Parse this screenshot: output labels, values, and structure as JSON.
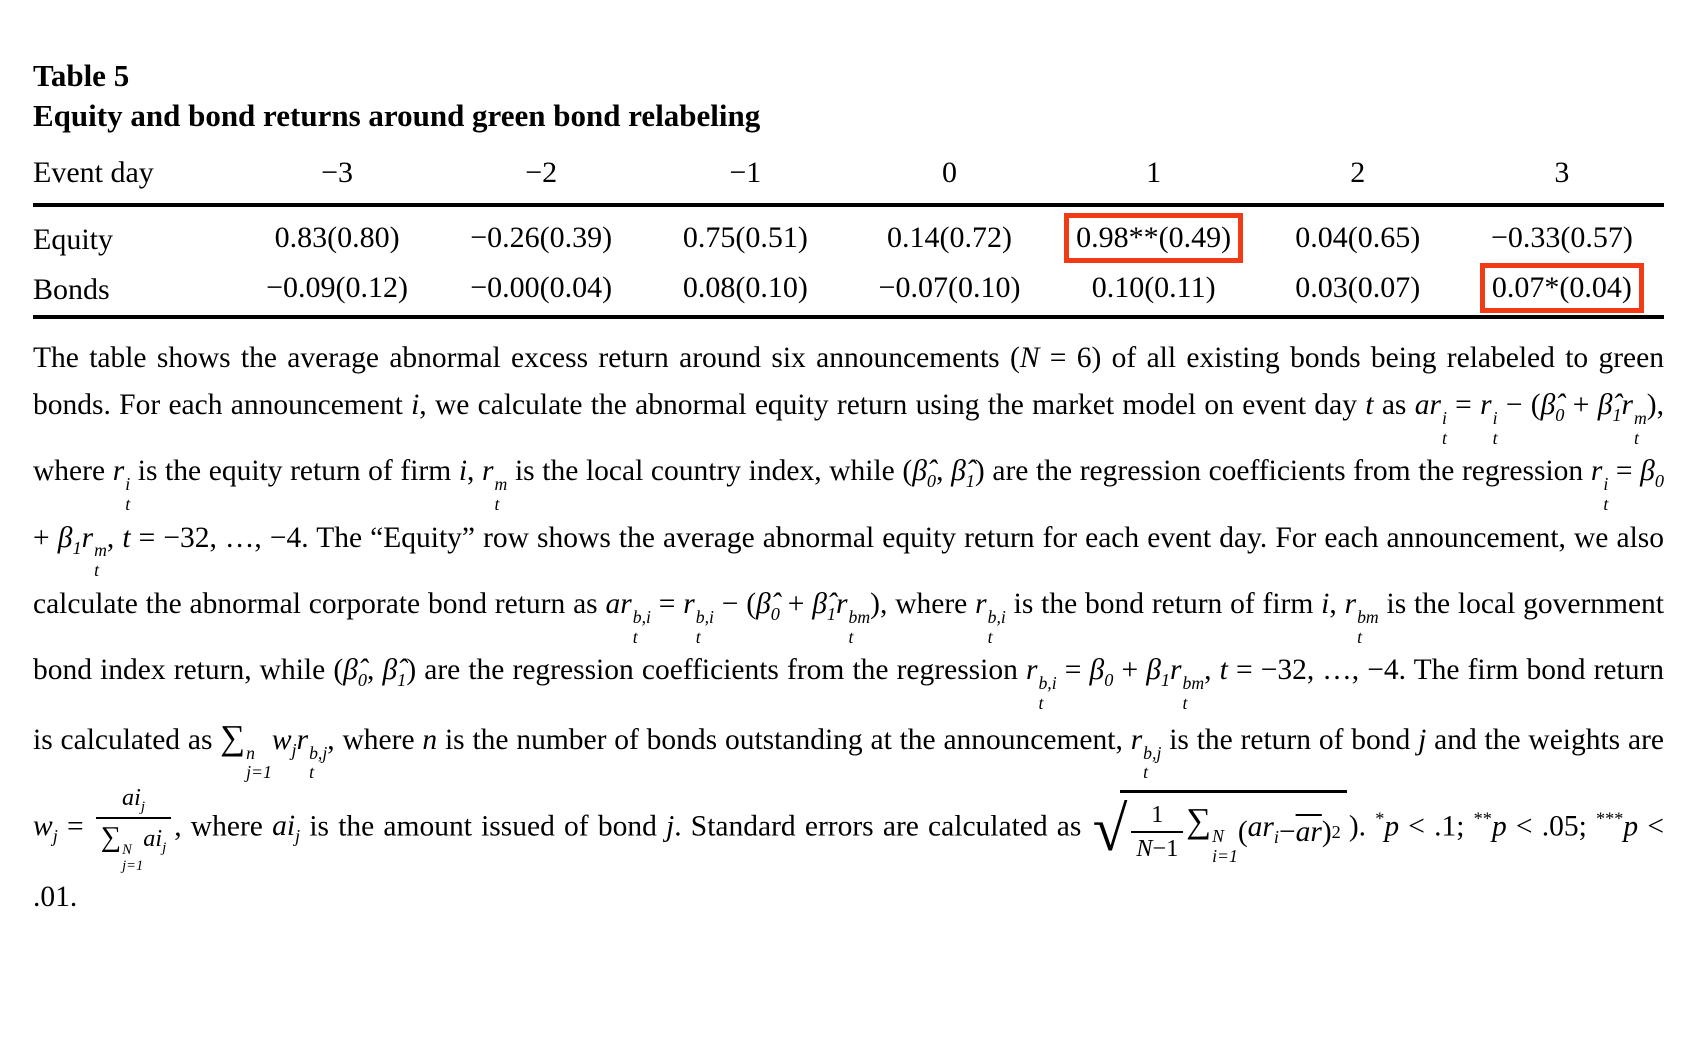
{
  "title": "Table 5",
  "subtitle": "Equity and bond returns around green bond relabeling",
  "highlight_color": "#f23a16",
  "table": {
    "columns": [
      "Event day",
      "−3",
      "−2",
      "−1",
      "0",
      "1",
      "2",
      "3"
    ],
    "rows": [
      {
        "label": "Equity",
        "values": [
          "0.83",
          "−0.26",
          "0.75",
          "0.14",
          "0.98**",
          "0.04",
          "−0.33"
        ],
        "se": [
          "(0.80)",
          "(0.39)",
          "(0.51)",
          "(0.72)",
          "(0.49)",
          "(0.65)",
          "(0.57)"
        ],
        "highlight": 4
      },
      {
        "label": "Bonds",
        "values": [
          "−0.09",
          "−0.00",
          "0.08",
          "−0.07",
          "0.10",
          "0.03",
          "0.07*"
        ],
        "se": [
          "(0.12)",
          "(0.04)",
          "(0.10)",
          "(0.10)",
          "(0.11)",
          "(0.07)",
          "(0.04)"
        ],
        "highlight": 6
      }
    ]
  },
  "note_runs": [
    {
      "t": "The table shows the average abnormal excess return around six announcements ("
    },
    {
      "i": "N"
    },
    {
      "t": " = 6) of all existing bonds being relabeled to green bonds. For each announcement "
    },
    {
      "i": "i"
    },
    {
      "t": ", we calculate the abnormal equity return using the market model on event day "
    },
    {
      "i": "t"
    },
    {
      "t": " as "
    },
    {
      "m": {
        "b": "ar",
        "sup": "i",
        "sub": "t"
      }
    },
    {
      "t": " = "
    },
    {
      "m": {
        "b": "r",
        "sup": "i",
        "sub": "t"
      }
    },
    {
      "t": " − ("
    },
    {
      "m": {
        "b": "β̂",
        "sub": "0"
      }
    },
    {
      "t": " + "
    },
    {
      "m": {
        "b": "β̂",
        "sub": "1"
      }
    },
    {
      "m": {
        "b": "r",
        "sup": "m",
        "sub": "t"
      }
    },
    {
      "t": "), where "
    },
    {
      "m": {
        "b": "r",
        "sup": "i",
        "sub": "t"
      }
    },
    {
      "t": " is the equity return of firm "
    },
    {
      "i": "i"
    },
    {
      "t": ", "
    },
    {
      "m": {
        "b": "r",
        "sup": "m",
        "sub": "t"
      }
    },
    {
      "t": " is the local country index, while ("
    },
    {
      "m": {
        "b": "β̂",
        "sub": "0"
      }
    },
    {
      "t": ", "
    },
    {
      "m": {
        "b": "β̂",
        "sub": "1"
      }
    },
    {
      "t": ") are the regression coefficients from the regression "
    },
    {
      "m": {
        "b": "r",
        "sup": "i",
        "sub": "t"
      }
    },
    {
      "t": " = "
    },
    {
      "m": {
        "b": "β",
        "sub": "0"
      }
    },
    {
      "t": " + "
    },
    {
      "m": {
        "b": "β",
        "sub": "1"
      }
    },
    {
      "m": {
        "b": "r",
        "sup": "m",
        "sub": "t"
      }
    },
    {
      "t": ", "
    },
    {
      "i": "t"
    },
    {
      "t": " = −32, …, −4. The “Equity” row shows the average abnormal equity return for each event day. For each announcement, we also calculate the abnormal corporate bond return as "
    },
    {
      "m": {
        "b": "ar",
        "sup": "b,i",
        "sub": "t"
      }
    },
    {
      "t": " = "
    },
    {
      "m": {
        "b": "r",
        "sup": "b,i",
        "sub": "t"
      }
    },
    {
      "t": " − ("
    },
    {
      "m": {
        "b": "β̂",
        "sub": "0"
      }
    },
    {
      "t": " + "
    },
    {
      "m": {
        "b": "β̂",
        "sub": "1"
      }
    },
    {
      "m": {
        "b": "r",
        "sup": "bm",
        "sub": "t"
      }
    },
    {
      "t": "), where "
    },
    {
      "m": {
        "b": "r",
        "sup": "b,i",
        "sub": "t"
      }
    },
    {
      "t": " is the bond return of firm "
    },
    {
      "i": "i"
    },
    {
      "t": ", "
    },
    {
      "m": {
        "b": "r",
        "sup": "bm",
        "sub": "t"
      }
    },
    {
      "t": " is the local government bond index return, while ("
    },
    {
      "m": {
        "b": "β̂",
        "sub": "0"
      }
    },
    {
      "t": ", "
    },
    {
      "m": {
        "b": "β̂",
        "sub": "1"
      }
    },
    {
      "t": ") are the regression coefficients from the regression "
    },
    {
      "m": {
        "b": "r",
        "sup": "b,i",
        "sub": "t"
      }
    },
    {
      "t": " = "
    },
    {
      "m": {
        "b": "β",
        "sub": "0"
      }
    },
    {
      "t": " + "
    },
    {
      "m": {
        "b": "β",
        "sub": "1"
      }
    },
    {
      "m": {
        "b": "r",
        "sup": "bm",
        "sub": "t"
      }
    },
    {
      "t": ", "
    },
    {
      "i": "t"
    },
    {
      "t": " = −32, …, −4. The firm bond return is calculated as "
    },
    {
      "sum": {
        "sup": "n",
        "sub": "j=1"
      }
    },
    {
      "m": {
        "b": "w",
        "sub": "j"
      }
    },
    {
      "m": {
        "b": "r",
        "sup": "b,j",
        "sub": "t"
      }
    },
    {
      "t": ", where "
    },
    {
      "i": "n"
    },
    {
      "t": " is the number of bonds outstanding at the announcement, "
    },
    {
      "m": {
        "b": "r",
        "sup": "b,j",
        "sub": "t"
      }
    },
    {
      "t": " is the return of bond "
    },
    {
      "i": "j"
    },
    {
      "t": " and the weights are "
    },
    {
      "m": {
        "b": "w",
        "sub": "j"
      }
    },
    {
      "t": " = "
    },
    {
      "frac": {
        "n": [
          {
            "m": {
              "b": "ai",
              "sub": "j"
            }
          }
        ],
        "d": [
          {
            "sum": {
              "sup": "N",
              "sub": "j=1"
            }
          },
          {
            "m": {
              "b": "ai",
              "sub": "j"
            }
          }
        ]
      }
    },
    {
      "t": ", where "
    },
    {
      "m": {
        "b": "ai",
        "sub": "j"
      }
    },
    {
      "t": " is the amount issued of bond "
    },
    {
      "i": "j"
    },
    {
      "t": ". Standard errors are calculated as "
    },
    {
      "sqrt": [
        {
          "frac": {
            "n": [
              {
                "t": "1"
              }
            ],
            "d": [
              {
                "i": "N"
              },
              {
                "t": "−1"
              }
            ]
          }
        },
        {
          "sum": {
            "sup": "N",
            "sub": "i=1"
          }
        },
        {
          "t": "("
        },
        {
          "m": {
            "b": "ar",
            "sub": "i"
          }
        },
        {
          "t": " − "
        },
        {
          "ol": "ar"
        },
        {
          "t": ")"
        },
        {
          "s": "2"
        }
      ]
    },
    {
      "t": "). "
    },
    {
      "s": "*"
    },
    {
      "i": "p"
    },
    {
      "t": " < .1; "
    },
    {
      "s": "**"
    },
    {
      "i": "p"
    },
    {
      "t": " < .05; "
    },
    {
      "s": "***"
    },
    {
      "i": "p"
    },
    {
      "t": " < .01."
    }
  ]
}
